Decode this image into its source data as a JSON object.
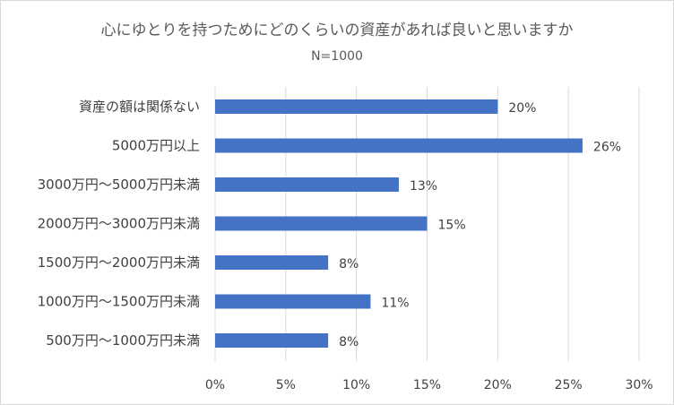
{
  "chart_data": {
    "type": "bar",
    "orientation": "horizontal",
    "title": "心にゆとりを持つためにどのくらいの資産があれば良いと思いますか",
    "subtitle": "N=1000",
    "categories": [
      "資産の額は関係ない",
      "5000万円以上",
      "3000万円～5000万円未満",
      "2000万円～3000万円未満",
      "1500万円～2000万円未満",
      "1000万円～1500万円未満",
      "500万円～1000万円未満"
    ],
    "values": [
      20,
      26,
      13,
      15,
      8,
      11,
      8
    ],
    "data_labels": [
      "20%",
      "26%",
      "13%",
      "15%",
      "8%",
      "11%",
      "8%"
    ],
    "x_ticks": [
      "0%",
      "5%",
      "10%",
      "15%",
      "20%",
      "25%",
      "30%"
    ],
    "xlim": [
      0,
      30
    ],
    "grid": true,
    "legend": "none",
    "bar_color": "#4472c4",
    "grid_color": "#d9d9d9"
  }
}
